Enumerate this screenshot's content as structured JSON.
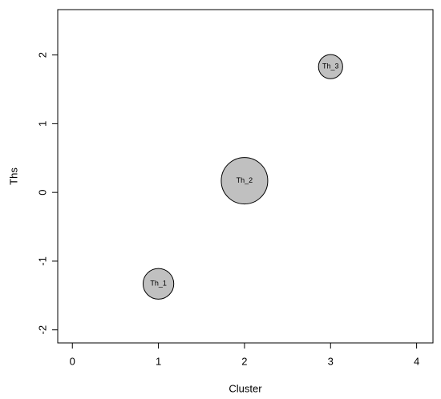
{
  "chart_data": {
    "type": "bubble",
    "xlabel": "Cluster",
    "ylabel": "Ths",
    "labels": [
      "Th_1",
      "Th_2",
      "Th_3"
    ],
    "x": [
      1,
      2,
      3
    ],
    "values": [
      -1.33,
      0.17,
      1.83
    ],
    "sizes": [
      0.66,
      1,
      0.52
    ],
    "color": "#c0c0c0",
    "xlim": [
      -0.17,
      4.19
    ],
    "ylim": [
      -2.19,
      2.66
    ],
    "xticks": [
      0,
      1,
      2,
      3,
      4
    ],
    "yticks": [
      -2,
      -1,
      0,
      1,
      2
    ]
  }
}
